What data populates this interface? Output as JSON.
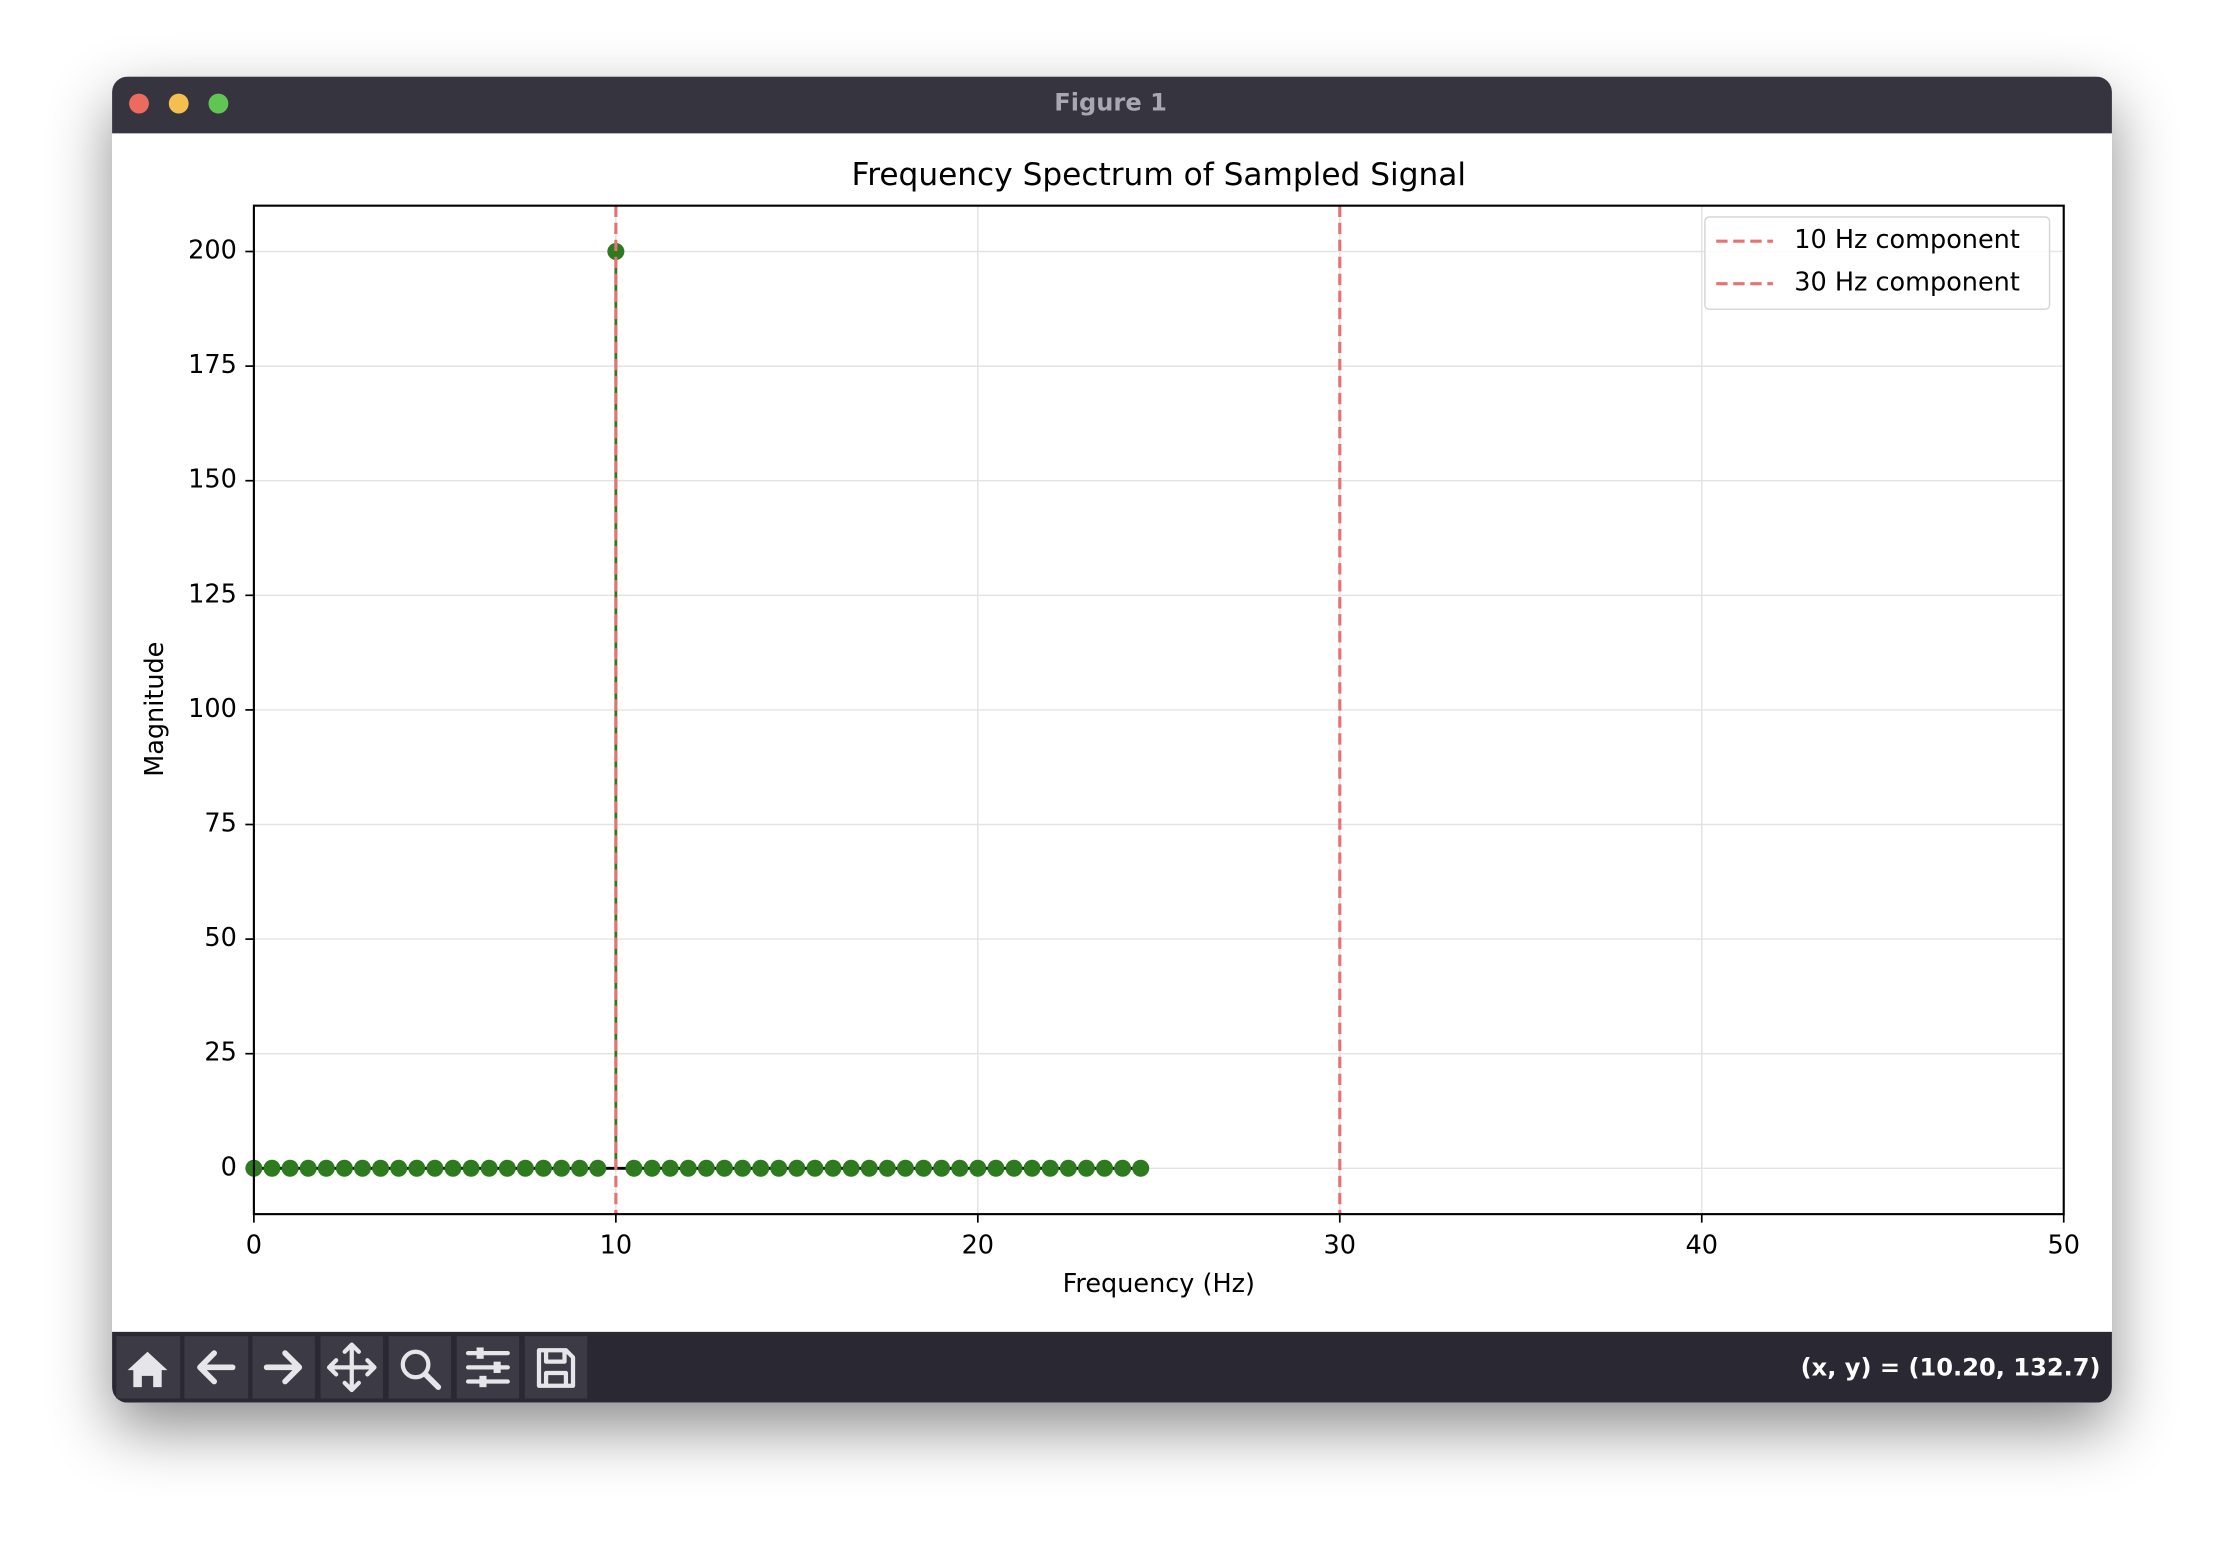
{
  "window": {
    "title": "Figure 1",
    "status": "(x, y) = (10.20, 132.7)"
  },
  "chart_data": {
    "type": "stem",
    "title": "Frequency Spectrum of Sampled Signal",
    "x_label": "Frequency (Hz)",
    "y_label": "Magnitude",
    "x": [
      0,
      0.5,
      1,
      1.5,
      2,
      2.5,
      3,
      3.5,
      4,
      4.5,
      5,
      5.5,
      6,
      6.5,
      7,
      7.5,
      8,
      8.5,
      9,
      9.5,
      10,
      10.5,
      11,
      11.5,
      12,
      12.5,
      13,
      13.5,
      14,
      14.5,
      15,
      15.5,
      16,
      16.5,
      17,
      17.5,
      18,
      18.5,
      19,
      19.5,
      20,
      20.5,
      21,
      21.5,
      22,
      22.5,
      23,
      23.5,
      24,
      24.5
    ],
    "values": [
      0,
      0,
      0,
      0,
      0,
      0,
      0,
      0,
      0,
      0,
      0,
      0,
      0,
      0,
      0,
      0,
      0,
      0,
      0,
      0,
      200,
      0,
      0,
      0,
      0,
      0,
      0,
      0,
      0,
      0,
      0,
      0,
      0,
      0,
      0,
      0,
      0,
      0,
      0,
      0,
      0,
      0,
      0,
      0,
      0,
      0,
      0,
      0,
      0,
      0
    ],
    "color": "#2d7a1f",
    "baseline_color": "#000000",
    "vlines": [
      {
        "x": 10,
        "name": "10 Hz component",
        "color": "#e57373"
      },
      {
        "x": 30,
        "name": "30 Hz component",
        "color": "#e57373"
      }
    ],
    "xlim": [
      0,
      50
    ],
    "ylim": [
      -10,
      210
    ],
    "xticks": [
      0,
      10,
      20,
      30,
      40,
      50
    ],
    "yticks": [
      0,
      25,
      50,
      75,
      100,
      125,
      150,
      175,
      200
    ],
    "grid": true,
    "legend": "upper right"
  }
}
